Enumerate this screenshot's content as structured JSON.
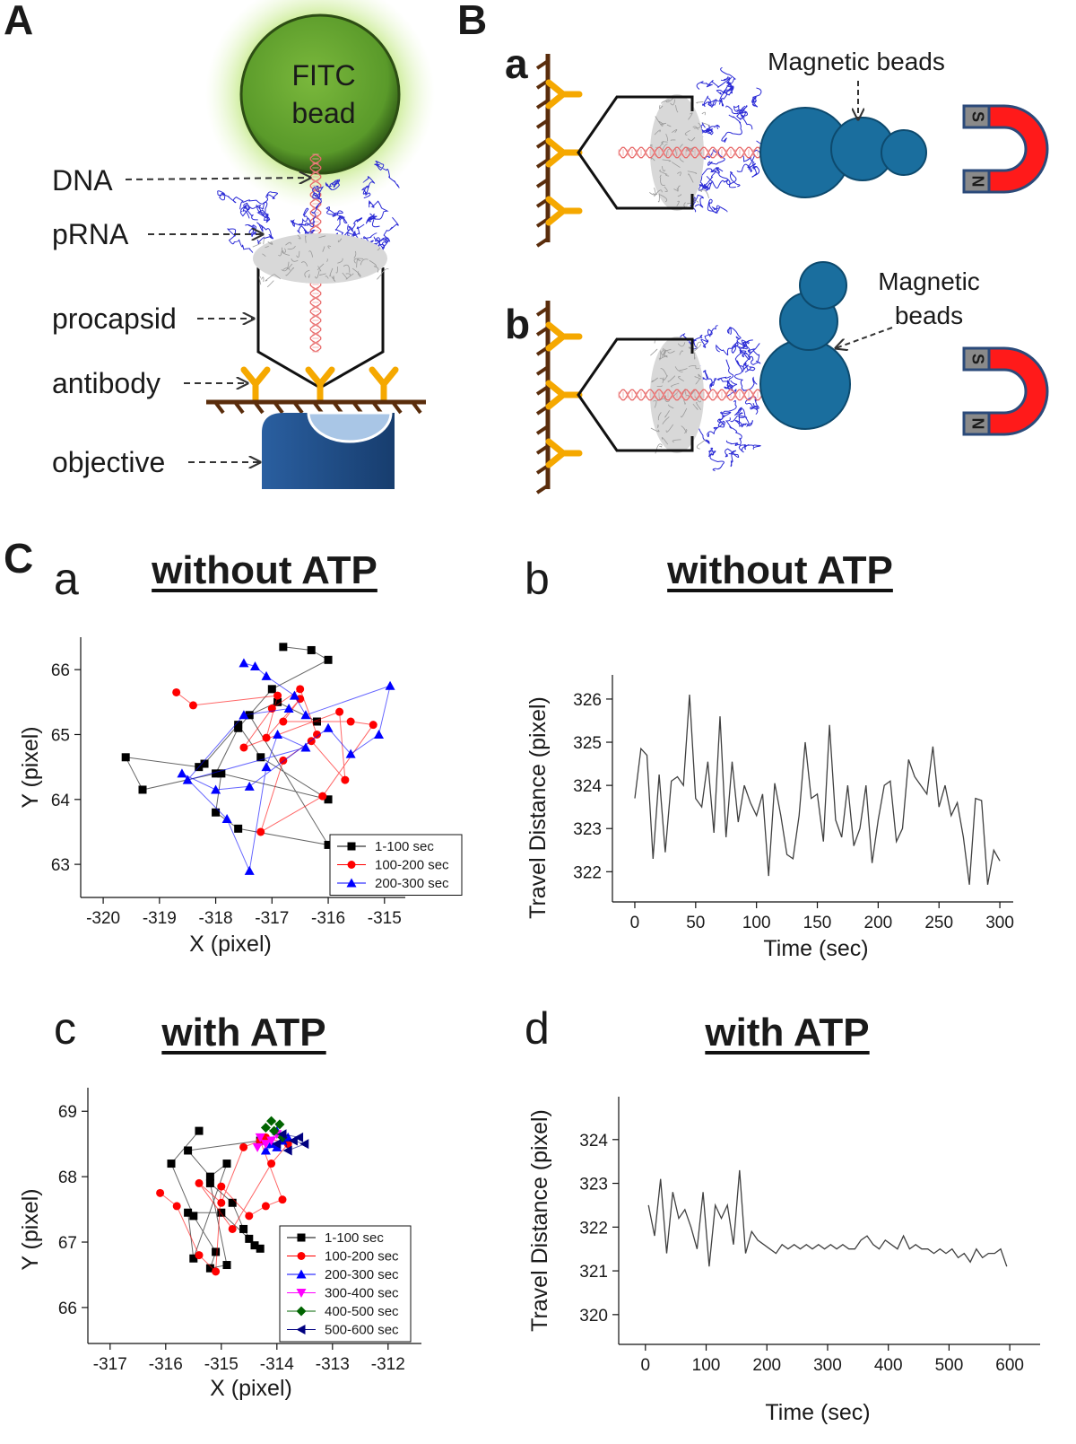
{
  "panel_labels": [
    "A",
    "B",
    "C"
  ],
  "panel_A": {
    "bead_label": [
      "FITC",
      "bead"
    ],
    "labels": [
      "DNA",
      "pRNA",
      "procapsid",
      "antibody",
      "objective"
    ]
  },
  "panel_B": {
    "a": {
      "label": "a",
      "beads_label": [
        "Magnetic beads"
      ],
      "magnet": [
        "S",
        "N"
      ]
    },
    "b": {
      "label": "b",
      "beads_label": [
        "Magnetic",
        "beads"
      ],
      "magnet": [
        "S",
        "N"
      ]
    }
  },
  "chart_data": [
    {
      "type": "scatter",
      "label": "a",
      "title": "without ATP",
      "x_label": "X (pixel)",
      "y_label": "Y (pixel)",
      "xlim": [
        -320.4,
        -314.63
      ],
      "ylim": [
        62.49,
        66.5
      ],
      "xticks": [
        -320,
        -319,
        -318,
        -317,
        -316,
        -315
      ],
      "yticks": [
        63,
        64,
        65,
        66
      ],
      "legend": "lower right",
      "connect": true,
      "series": [
        {
          "name": "1-100 sec",
          "color": "#000000",
          "marker": "square",
          "x": [
            -316.8,
            -316.3,
            -316.0,
            -317.0,
            -317.6,
            -318.0,
            -319.3,
            -319.6,
            -318.3,
            -318.2,
            -317.6,
            -317.2,
            -316.0,
            -317.9,
            -318.0,
            -317.6,
            -316.0,
            -317.4,
            -316.9,
            -316.2
          ],
          "values": [
            66.35,
            66.3,
            66.15,
            65.7,
            65.1,
            64.4,
            64.15,
            64.65,
            64.5,
            64.55,
            65.15,
            64.65,
            64.0,
            64.4,
            63.8,
            63.55,
            63.3,
            65.3,
            65.5,
            65.2
          ]
        },
        {
          "name": "100-200 sec",
          "color": "#ff0000",
          "marker": "circle",
          "x": [
            -318.7,
            -318.4,
            -316.9,
            -317.1,
            -316.5,
            -316.8,
            -315.6,
            -315.2,
            -316.1,
            -317.2,
            -316.8,
            -316.3,
            -315.7,
            -315.8,
            -317.5,
            -317.0,
            -316.5,
            -316.2
          ],
          "values": [
            65.65,
            65.45,
            65.6,
            64.95,
            65.55,
            65.2,
            65.2,
            65.15,
            64.05,
            63.5,
            64.6,
            64.9,
            64.3,
            65.35,
            64.8,
            65.4,
            65.7,
            65.0
          ]
        },
        {
          "name": "200-300 sec",
          "color": "#0000ff",
          "marker": "triangle",
          "x": [
            -317.5,
            -317.3,
            -317.1,
            -316.6,
            -316.4,
            -314.9,
            -315.1,
            -315.6,
            -316.0,
            -317.4,
            -318.0,
            -318.6,
            -317.8,
            -317.4,
            -317.1,
            -316.9,
            -316.4,
            -318.5,
            -317.5,
            -316.7
          ],
          "values": [
            66.1,
            66.05,
            65.9,
            65.6,
            65.3,
            65.75,
            65.0,
            64.7,
            65.1,
            64.2,
            64.15,
            64.4,
            63.7,
            62.9,
            64.5,
            65.0,
            64.8,
            64.3,
            65.3,
            65.4
          ]
        }
      ]
    },
    {
      "type": "line",
      "label": "b",
      "title": "without ATP",
      "x_label": "Time (sec)",
      "y_label": "Travel Distance (pixel)",
      "xlim": [
        -18.4,
        311
      ],
      "ylim": [
        321.3,
        326.56
      ],
      "xticks": [
        0,
        50,
        100,
        150,
        200,
        250,
        300
      ],
      "yticks": [
        322,
        323,
        324,
        325,
        326
      ],
      "color": "#404040",
      "x": [
        0,
        5,
        10,
        15,
        20,
        25,
        30,
        35,
        40,
        45,
        50,
        55,
        60,
        65,
        70,
        75,
        80,
        85,
        90,
        95,
        100,
        105,
        110,
        115,
        120,
        125,
        130,
        135,
        140,
        145,
        150,
        155,
        160,
        165,
        170,
        175,
        180,
        185,
        190,
        195,
        200,
        205,
        210,
        215,
        220,
        225,
        230,
        235,
        240,
        245,
        250,
        255,
        260,
        265,
        270,
        275,
        280,
        285,
        290,
        295,
        300
      ],
      "values": [
        323.7,
        324.85,
        324.7,
        322.3,
        324.25,
        322.45,
        324.1,
        324.2,
        324.0,
        326.1,
        323.7,
        323.5,
        324.55,
        322.9,
        325.6,
        322.8,
        324.55,
        323.15,
        324.0,
        323.6,
        323.3,
        323.8,
        321.9,
        324.05,
        323.3,
        322.4,
        322.3,
        323.3,
        325.0,
        323.7,
        323.8,
        322.7,
        325.4,
        323.2,
        322.8,
        324.0,
        322.6,
        323.0,
        324.0,
        322.2,
        323.2,
        324.0,
        324.1,
        322.7,
        323.0,
        324.6,
        324.2,
        324.0,
        323.8,
        324.9,
        323.5,
        324.0,
        323.3,
        323.6,
        322.8,
        321.7,
        323.7,
        323.65,
        321.7,
        322.5,
        322.25
      ]
    },
    {
      "type": "scatter",
      "label": "c",
      "title": "with ATP",
      "x_label": "X (pixel)",
      "y_label": "Y (pixel)",
      "xlim": [
        -317.4,
        -311.4
      ],
      "ylim": [
        65.45,
        69.36
      ],
      "xticks": [
        -317,
        -316,
        -315,
        -314,
        -313,
        -312
      ],
      "yticks": [
        66,
        67,
        68,
        69
      ],
      "legend": "lower right",
      "connect": true,
      "series": [
        {
          "name": "1-100 sec",
          "color": "#000000",
          "marker": "square",
          "x": [
            -315.4,
            -315.9,
            -315.5,
            -315.1,
            -315.2,
            -314.9,
            -315.2,
            -314.8,
            -314.6,
            -314.4,
            -314.3,
            -314.5,
            -315.0,
            -315.6,
            -315.5,
            -314.9,
            -315.2,
            -315.6,
            -314.3
          ],
          "values": [
            68.7,
            68.2,
            67.4,
            66.85,
            66.6,
            66.65,
            67.9,
            67.6,
            67.2,
            66.95,
            66.9,
            67.05,
            67.45,
            67.45,
            66.75,
            68.2,
            68.0,
            68.4,
            68.55
          ]
        },
        {
          "name": "100-200 sec",
          "color": "#ff0000",
          "marker": "circle",
          "x": [
            -316.1,
            -315.8,
            -315.4,
            -315.1,
            -315.0,
            -314.5,
            -314.2,
            -313.9,
            -314.3,
            -314.6,
            -315.0,
            -315.4,
            -314.8,
            -314.1,
            -313.8,
            -314.2
          ],
          "values": [
            67.75,
            67.55,
            66.8,
            66.55,
            67.85,
            67.4,
            67.55,
            67.65,
            68.55,
            68.45,
            67.6,
            67.9,
            67.2,
            68.2,
            68.5,
            68.6
          ]
        },
        {
          "name": "200-300 sec",
          "color": "#0000ff",
          "marker": "triangle",
          "x": [
            -314.0,
            -313.9,
            -314.2,
            -314.1,
            -313.8,
            -314.0
          ],
          "values": [
            68.7,
            68.55,
            68.4,
            68.5,
            68.6,
            68.45
          ]
        },
        {
          "name": "300-400 sec",
          "color": "#ff00ff",
          "marker": "triangle-down",
          "x": [
            -314.3,
            -314.2,
            -314.1,
            -314.35,
            -314.0
          ],
          "values": [
            68.6,
            68.5,
            68.55,
            68.45,
            68.65
          ]
        },
        {
          "name": "400-500 sec",
          "color": "#006400",
          "marker": "diamond",
          "x": [
            -314.1,
            -313.95,
            -314.05,
            -313.9,
            -314.2
          ],
          "values": [
            68.85,
            68.8,
            68.7,
            68.6,
            68.75
          ]
        },
        {
          "name": "500-600 sec",
          "color": "#000080",
          "marker": "triangle-left",
          "x": [
            -313.7,
            -313.5,
            -313.8,
            -313.9,
            -313.6,
            -314.0
          ],
          "values": [
            68.55,
            68.5,
            68.4,
            68.65,
            68.6,
            68.5
          ]
        }
      ]
    },
    {
      "type": "line",
      "label": "d",
      "title": "with ATP",
      "x_label": "Time (sec)",
      "y_label": "Travel Distance (pixel)",
      "xlim": [
        -44,
        650
      ],
      "ylim": [
        319.32,
        324.98
      ],
      "xticks": [
        0,
        100,
        200,
        300,
        400,
        500,
        600
      ],
      "yticks": [
        320,
        321,
        322,
        323,
        324
      ],
      "color": "#404040",
      "x": [
        5,
        15,
        25,
        35,
        45,
        55,
        65,
        75,
        85,
        95,
        105,
        115,
        125,
        135,
        145,
        155,
        165,
        175,
        185,
        195,
        205,
        215,
        225,
        235,
        245,
        255,
        265,
        275,
        285,
        295,
        305,
        315,
        325,
        335,
        345,
        355,
        365,
        375,
        385,
        395,
        405,
        415,
        425,
        435,
        445,
        455,
        465,
        475,
        485,
        495,
        505,
        515,
        525,
        535,
        545,
        555,
        565,
        575,
        585,
        595
      ],
      "values": [
        322.5,
        321.8,
        323.1,
        321.4,
        322.8,
        322.2,
        322.4,
        322.0,
        321.5,
        322.8,
        321.1,
        322.5,
        322.2,
        322.5,
        321.6,
        323.3,
        321.4,
        321.9,
        321.7,
        321.6,
        321.5,
        321.4,
        321.6,
        321.5,
        321.6,
        321.5,
        321.6,
        321.5,
        321.6,
        321.5,
        321.6,
        321.5,
        321.6,
        321.5,
        321.5,
        321.7,
        321.8,
        321.6,
        321.5,
        321.7,
        321.6,
        321.5,
        321.8,
        321.5,
        321.6,
        321.5,
        321.5,
        321.4,
        321.5,
        321.4,
        321.5,
        321.3,
        321.4,
        321.2,
        321.5,
        321.3,
        321.4,
        321.4,
        321.5,
        321.1
      ]
    }
  ]
}
